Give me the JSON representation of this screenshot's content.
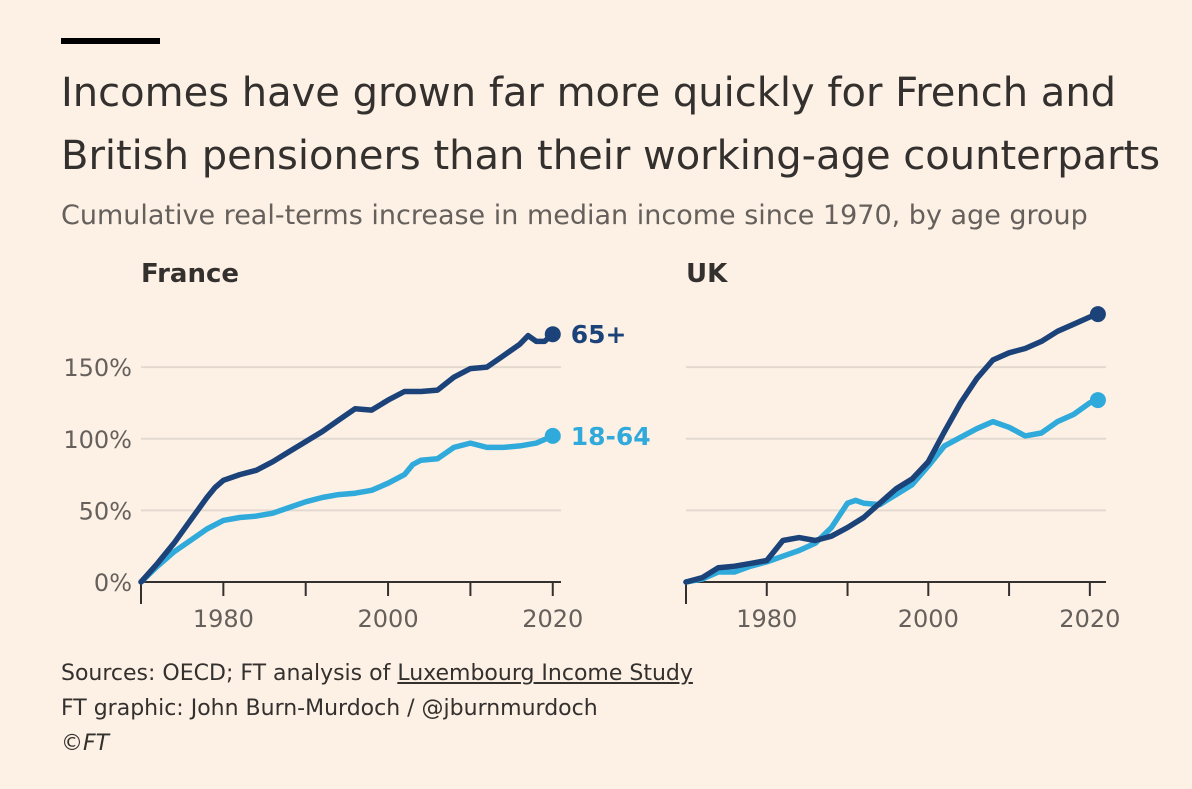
{
  "title": "Incomes have grown far more quickly for French and British pensioners than their working-age counterparts",
  "subtitle": "Cumulative real-terms increase in median income since 1970, by age group",
  "footer": {
    "sources_prefix": "Sources: OECD; FT analysis of ",
    "sources_link": "Luxembourg Income Study",
    "graphic": "FT graphic: John Burn-Murdoch / @jburnmurdoch",
    "copyright": "©FT"
  },
  "colors": {
    "dark": "#1B4379",
    "light": "#2FAADB",
    "grid": "#E3D9CF",
    "axis": "#33302E",
    "background": "#FDF1E6"
  },
  "chart_data": [
    {
      "type": "line",
      "panel": "France",
      "title": "France",
      "xlim": [
        1970,
        2021
      ],
      "ylim": [
        0,
        185
      ],
      "yticks": [
        0,
        50,
        100,
        150
      ],
      "ytick_labels": [
        "0%",
        "50%",
        "100%",
        "150%"
      ],
      "xticks": [
        1980,
        2000,
        2020
      ],
      "xtick_labels": [
        "1980",
        "2000",
        "2020"
      ],
      "end_labels": true,
      "series": [
        {
          "name": "65+",
          "color": "#1B4379",
          "x": [
            1970,
            1972,
            1974,
            1976,
            1978,
            1979,
            1980,
            1982,
            1984,
            1986,
            1988,
            1990,
            1992,
            1994,
            1996,
            1998,
            2000,
            2002,
            2004,
            2006,
            2008,
            2010,
            2012,
            2014,
            2016,
            2017,
            2018,
            2019,
            2020
          ],
          "y": [
            0,
            13,
            27,
            43,
            59,
            66,
            71,
            75,
            78,
            84,
            91,
            98,
            105,
            113,
            121,
            120,
            127,
            133,
            133,
            134,
            143,
            149,
            150,
            158,
            166,
            172,
            168,
            168,
            173
          ]
        },
        {
          "name": "18-64",
          "color": "#2FAADB",
          "x": [
            1970,
            1972,
            1974,
            1976,
            1978,
            1980,
            1982,
            1984,
            1986,
            1988,
            1990,
            1992,
            1994,
            1996,
            1998,
            2000,
            2002,
            2003,
            2004,
            2006,
            2008,
            2010,
            2012,
            2014,
            2016,
            2018,
            2020
          ],
          "y": [
            0,
            11,
            21,
            29,
            37,
            43,
            45,
            46,
            48,
            52,
            56,
            59,
            61,
            62,
            64,
            69,
            75,
            82,
            85,
            86,
            94,
            97,
            94,
            94,
            95,
            97,
            102
          ]
        }
      ]
    },
    {
      "type": "line",
      "panel": "UK",
      "title": "UK",
      "xlim": [
        1970,
        2022
      ],
      "ylim": [
        0,
        185
      ],
      "yticks": [
        0,
        50,
        100,
        150
      ],
      "xticks": [
        1980,
        2000,
        2020
      ],
      "xtick_labels": [
        "1980",
        "2000",
        "2020"
      ],
      "end_labels": false,
      "series": [
        {
          "name": "65+",
          "color": "#1B4379",
          "x": [
            1970,
            1972,
            1974,
            1976,
            1978,
            1980,
            1982,
            1984,
            1986,
            1988,
            1990,
            1992,
            1994,
            1996,
            1998,
            2000,
            2002,
            2004,
            2006,
            2008,
            2010,
            2012,
            2014,
            2016,
            2018,
            2020,
            2021
          ],
          "y": [
            0,
            3,
            10,
            11,
            13,
            15,
            29,
            31,
            29,
            32,
            38,
            45,
            55,
            65,
            72,
            84,
            105,
            125,
            142,
            155,
            160,
            163,
            168,
            175,
            180,
            185,
            187
          ]
        },
        {
          "name": "18-64",
          "color": "#2FAADB",
          "x": [
            1970,
            1972,
            1974,
            1976,
            1978,
            1980,
            1982,
            1984,
            1986,
            1988,
            1990,
            1991,
            1992,
            1994,
            1996,
            1998,
            2000,
            2002,
            2004,
            2006,
            2008,
            2010,
            2012,
            2014,
            2016,
            2018,
            2020,
            2021
          ],
          "y": [
            0,
            2,
            7,
            7,
            11,
            14,
            18,
            22,
            27,
            38,
            55,
            57,
            55,
            54,
            61,
            68,
            81,
            95,
            101,
            107,
            112,
            108,
            102,
            104,
            112,
            117,
            125,
            127
          ]
        }
      ]
    }
  ]
}
